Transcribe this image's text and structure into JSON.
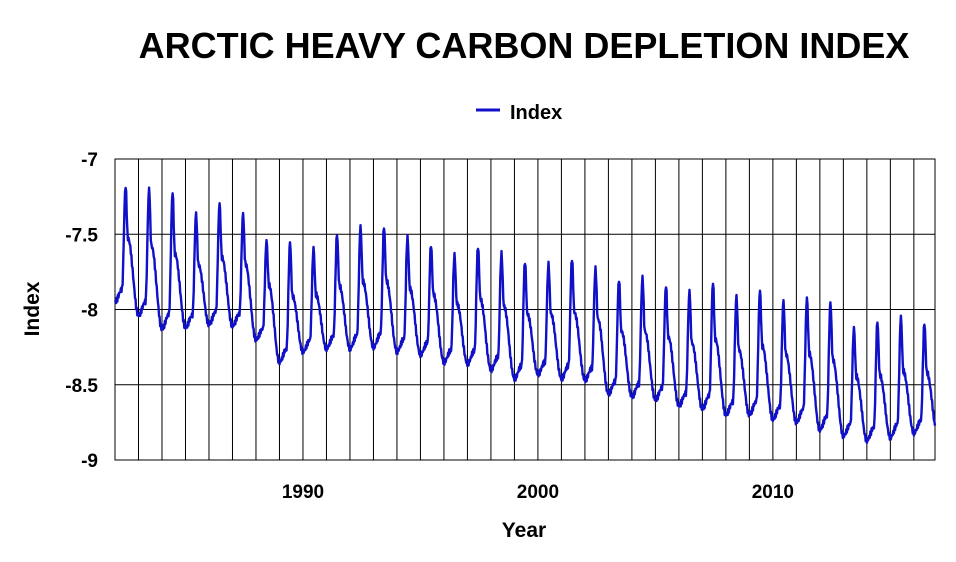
{
  "chart_data": {
    "type": "line",
    "title": "ARCTIC HEAVY CARBON DEPLETION INDEX",
    "xlabel": "Year",
    "ylabel": "Index",
    "xlim": [
      1982.0,
      2016.9
    ],
    "ylim": [
      -9,
      -7
    ],
    "y_ticks": [
      -7,
      -7.5,
      -8,
      -8.5,
      -9
    ],
    "y_tick_labels": [
      "-7",
      "-7.5",
      "-8",
      "-8.5",
      "-9"
    ],
    "x_ticks": [
      1990,
      2000,
      2010
    ],
    "x_tick_labels": [
      "1990",
      "2000",
      "2010"
    ],
    "grid": "vertical line per year, horizontal line per 0.5",
    "legend": {
      "position": "top-center",
      "entries": [
        "Index"
      ]
    },
    "series": [
      {
        "name": "Index",
        "color": "#1010c8",
        "annual_minima": [
          -7.95,
          -8.04,
          -8.13,
          -8.12,
          -8.1,
          -8.11,
          -8.2,
          -8.35,
          -8.28,
          -8.26,
          -8.26,
          -8.25,
          -8.28,
          -8.3,
          -8.35,
          -8.36,
          -8.4,
          -8.46,
          -8.43,
          -8.46,
          -8.47,
          -8.56,
          -8.58,
          -8.6,
          -8.64,
          -8.66,
          -8.7,
          -8.7,
          -8.73,
          -8.75,
          -8.8,
          -8.84,
          -8.87,
          -8.85,
          -8.82
        ],
        "annual_peaks": [
          -7.18,
          -7.2,
          -7.22,
          -7.36,
          -7.29,
          -7.36,
          -7.54,
          -7.55,
          -7.59,
          -7.5,
          -7.45,
          -7.45,
          -7.52,
          -7.57,
          -7.64,
          -7.58,
          -7.63,
          -7.68,
          -7.7,
          -7.66,
          -7.73,
          -7.8,
          -7.79,
          -7.84,
          -7.88,
          -7.82,
          -7.91,
          -7.87,
          -7.94,
          -7.92,
          -7.95,
          -8.12,
          -8.08,
          -8.05,
          -8.09
        ]
      }
    ]
  }
}
